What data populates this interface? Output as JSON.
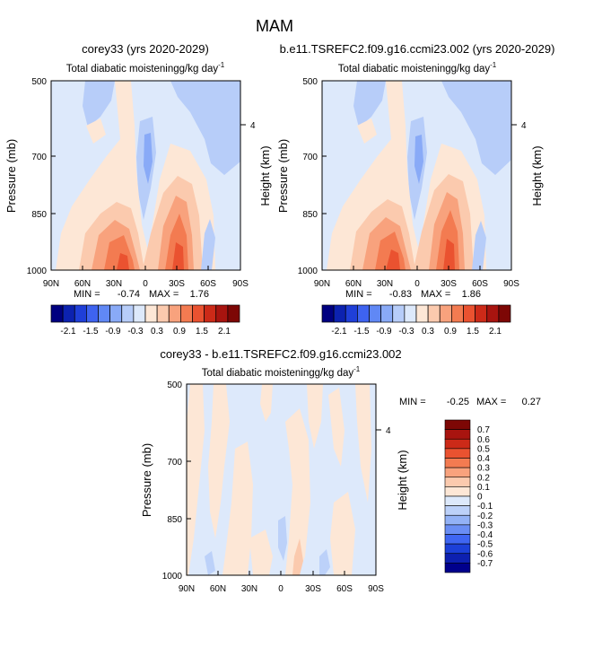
{
  "figure": {
    "title": "MAM"
  },
  "colors": {
    "main_scale": [
      "#000080",
      "#0c22b0",
      "#1f3fd8",
      "#3e63f0",
      "#6088f5",
      "#89aaf7",
      "#b7cdf9",
      "#dde9fb",
      "#fde7d6",
      "#fbcaae",
      "#f8a27d",
      "#f37b51",
      "#ea5230",
      "#cc2a18",
      "#a8140f",
      "#7d0705"
    ],
    "diff_scale": [
      "#00008c",
      "#0d20b0",
      "#1c40d8",
      "#3f66f2",
      "#6a8ef4",
      "#93b2f6",
      "#bcd1f9",
      "#dde9fb",
      "#fde7d6",
      "#fbcaae",
      "#f8a27d",
      "#f37b51",
      "#ea5230",
      "#cc2a18",
      "#a8140f",
      "#7d0705"
    ]
  },
  "chart_data": [
    {
      "type": "heatmap",
      "panel": "top-left",
      "title": "corey33 (yrs 2020-2029)",
      "subtitle_left": "Total diabatic moistening",
      "subtitle_units": "g/kg day",
      "units_exponent": "-1",
      "ylabel": "Pressure (mb)",
      "y2label": "Height (km)",
      "x_ticks": [
        "90N",
        "60N",
        "30N",
        "0",
        "30S",
        "60S",
        "90S"
      ],
      "y_ticks": [
        "500",
        "700",
        "850",
        "1000"
      ],
      "y2_ticks": [
        "4"
      ],
      "min_label": "MIN =",
      "min_value": "-0.74",
      "max_label": "MAX =",
      "max_value": "1.76",
      "colorbar_labels": [
        "-2.1",
        "-1.5",
        "-0.9",
        "-0.3",
        "0.3",
        "0.9",
        "1.5",
        "2.1"
      ]
    },
    {
      "type": "heatmap",
      "panel": "top-right",
      "title": "b.e11.TSREFC2.f09.g16.ccmi23.002 (yrs 2020-2029)",
      "subtitle_left": "Total diabatic moistening",
      "subtitle_units": "g/kg day",
      "units_exponent": "-1",
      "ylabel": "Pressure (mb)",
      "y2label": "Height (km)",
      "x_ticks": [
        "90N",
        "60N",
        "30N",
        "0",
        "30S",
        "60S",
        "90S"
      ],
      "y_ticks": [
        "500",
        "700",
        "850",
        "1000"
      ],
      "y2_ticks": [
        "4"
      ],
      "min_label": "MIN =",
      "min_value": "-0.83",
      "max_label": "MAX =",
      "max_value": "1.86",
      "colorbar_labels": [
        "-2.1",
        "-1.5",
        "-0.9",
        "-0.3",
        "0.3",
        "0.9",
        "1.5",
        "2.1"
      ]
    },
    {
      "type": "heatmap",
      "panel": "bottom",
      "title": "corey33 - b.e11.TSREFC2.f09.g16.ccmi23.002",
      "subtitle_left": "Total diabatic moistening",
      "subtitle_units": "g/kg day",
      "units_exponent": "-1",
      "ylabel": "Pressure (mb)",
      "y2label": "Height (km)",
      "x_ticks": [
        "90N",
        "60N",
        "30N",
        "0",
        "30S",
        "60S",
        "90S"
      ],
      "y_ticks": [
        "500",
        "700",
        "850",
        "1000"
      ],
      "y2_ticks": [
        "4"
      ],
      "min_label": "MIN =",
      "min_value": "-0.25",
      "max_label": "MAX =",
      "max_value": "0.27",
      "colorbar_labels": [
        "0.7",
        "0.6",
        "0.5",
        "0.4",
        "0.3",
        "0.2",
        "0.1",
        "0",
        "-0.1",
        "-0.2",
        "-0.3",
        "-0.4",
        "-0.5",
        "-0.6",
        "-0.7"
      ]
    }
  ]
}
